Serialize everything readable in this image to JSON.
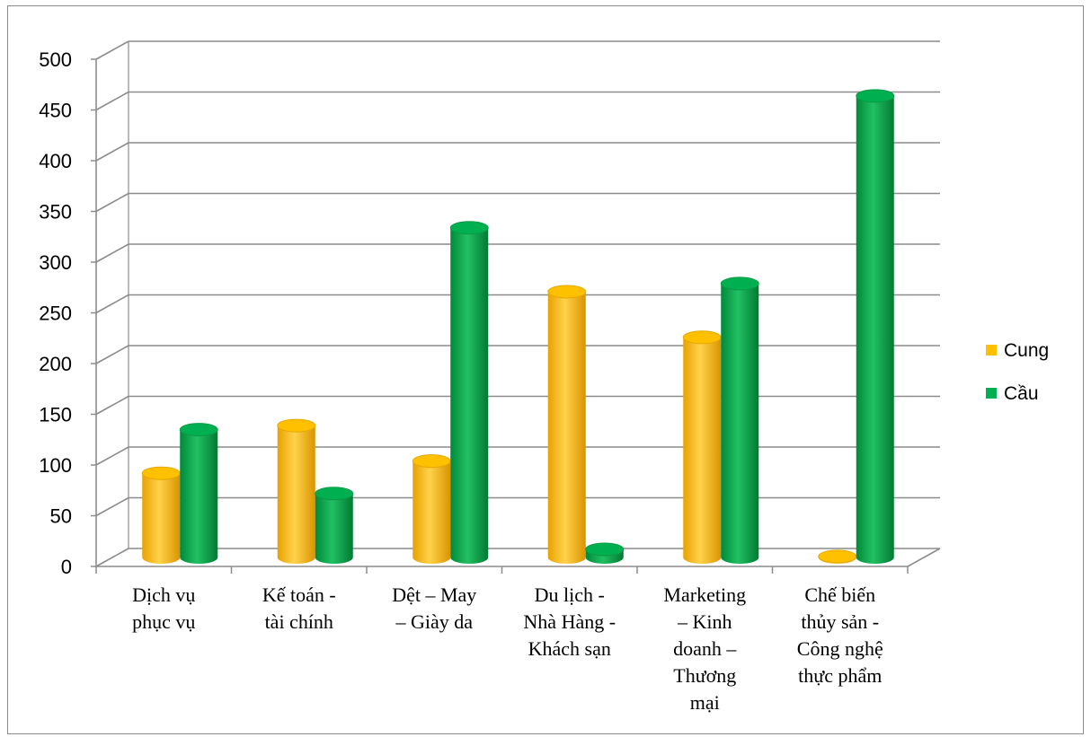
{
  "chart_data": {
    "type": "bar",
    "title": "",
    "xlabel": "",
    "ylabel": "",
    "ylim": [
      0,
      500
    ],
    "yticks": [
      0,
      50,
      100,
      150,
      200,
      250,
      300,
      350,
      400,
      450,
      500
    ],
    "grid": true,
    "legend_position": "right",
    "categories": [
      [
        "Dịch vụ",
        "phục vụ"
      ],
      [
        "Kế toán -",
        "tài chính"
      ],
      [
        "Dệt – May",
        "– Giày da"
      ],
      [
        "Du lịch -",
        "Nhà Hàng -",
        "Khách sạn"
      ],
      [
        "Marketing",
        "– Kinh",
        "doanh –",
        "Thương",
        "mại"
      ],
      [
        "Chế biến",
        "thủy sản -",
        "Công nghệ",
        "thực phẩm"
      ]
    ],
    "series": [
      {
        "name": "Cung",
        "color": "#FFC000",
        "values": [
          83,
          130,
          95,
          262,
          217,
          1
        ]
      },
      {
        "name": "Cầu",
        "color": "#00B050",
        "values": [
          126,
          63,
          325,
          8,
          270,
          455
        ]
      }
    ]
  }
}
